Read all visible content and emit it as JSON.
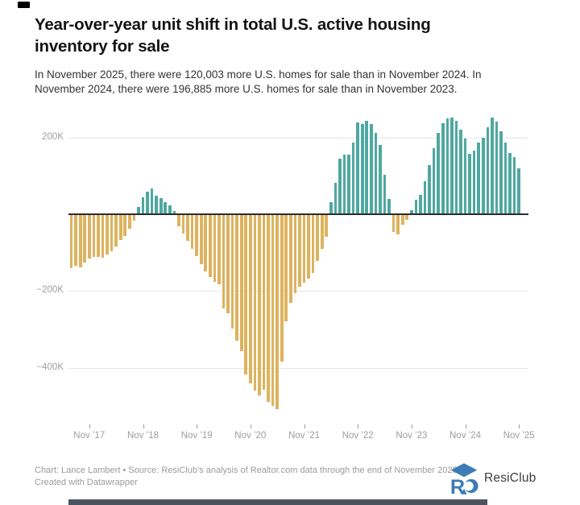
{
  "header": {
    "title": "Year-over-year unit shift in total U.S. active housing inventory for sale",
    "subtitle": "In November 2025, there were 120,003 more U.S. homes for sale than in November 2024. In November 2024, there were 196,885 more U.S. homes for sale than in November 2023."
  },
  "footer": {
    "attribution": "Chart: Lance Lambert • Source: ResiClub’s analysis of Realtor.com data through the end of November 2025 • Created with Datawrapper",
    "brand": "ResiClub"
  },
  "colors": {
    "positive_bar": "#4fa8a1",
    "negative_bar": "#ddb35f",
    "zero_line": "#2b2b2b",
    "gridline": "#e6e6e6",
    "axis_label": "#9d9d9d",
    "logo_blue": "#3d7cb5"
  },
  "chart_data": {
    "type": "bar",
    "title": "Year-over-year unit shift in total U.S. active housing inventory for sale",
    "xlabel": "",
    "ylabel": "",
    "unit": "thousands of homes (YoY change in active inventory)",
    "ylim": [
      -550,
      280
    ],
    "grid": "horizontal",
    "y_ticks": [
      {
        "label": "200K",
        "value": 200
      },
      {
        "label": "−200K",
        "value": -200
      },
      {
        "label": "−400K",
        "value": -400
      }
    ],
    "x_ticks": [
      {
        "label": "Nov ’17",
        "index": 4
      },
      {
        "label": "Nov ’18",
        "index": 16
      },
      {
        "label": "Nov ’19",
        "index": 28
      },
      {
        "label": "Nov ’20",
        "index": 40
      },
      {
        "label": "Nov ’21",
        "index": 52
      },
      {
        "label": "Nov ’22",
        "index": 64
      },
      {
        "label": "Nov ’23",
        "index": 76
      },
      {
        "label": "Nov ’24",
        "index": 88
      },
      {
        "label": "Nov ’25",
        "index": 100
      }
    ],
    "categories": [
      "Jul 2017",
      "Aug 2017",
      "Sep 2017",
      "Oct 2017",
      "Nov 2017",
      "Dec 2017",
      "Jan 2018",
      "Feb 2018",
      "Mar 2018",
      "Apr 2018",
      "May 2018",
      "Jun 2018",
      "Jul 2018",
      "Aug 2018",
      "Sep 2018",
      "Oct 2018",
      "Nov 2018",
      "Dec 2018",
      "Jan 2019",
      "Feb 2019",
      "Mar 2019",
      "Apr 2019",
      "May 2019",
      "Jun 2019",
      "Jul 2019",
      "Aug 2019",
      "Sep 2019",
      "Oct 2019",
      "Nov 2019",
      "Dec 2019",
      "Jan 2020",
      "Feb 2020",
      "Mar 2020",
      "Apr 2020",
      "May 2020",
      "Jun 2020",
      "Jul 2020",
      "Aug 2020",
      "Sep 2020",
      "Oct 2020",
      "Nov 2020",
      "Dec 2020",
      "Jan 2021",
      "Feb 2021",
      "Mar 2021",
      "Apr 2021",
      "May 2021",
      "Jun 2021",
      "Jul 2021",
      "Aug 2021",
      "Sep 2021",
      "Oct 2021",
      "Nov 2021",
      "Dec 2021",
      "Jan 2022",
      "Feb 2022",
      "Mar 2022",
      "Apr 2022",
      "May 2022",
      "Jun 2022",
      "Jul 2022",
      "Aug 2022",
      "Sep 2022",
      "Oct 2022",
      "Nov 2022",
      "Dec 2022",
      "Jan 2023",
      "Feb 2023",
      "Mar 2023",
      "Apr 2023",
      "May 2023",
      "Jun 2023",
      "Jul 2023",
      "Aug 2023",
      "Sep 2023",
      "Oct 2023",
      "Nov 2023",
      "Dec 2023",
      "Jan 2024",
      "Feb 2024",
      "Mar 2024",
      "Apr 2024",
      "May 2024",
      "Jun 2024",
      "Jul 2024",
      "Aug 2024",
      "Sep 2024",
      "Oct 2024",
      "Nov 2024",
      "Dec 2024",
      "Jan 2025",
      "Feb 2025",
      "Mar 2025",
      "Apr 2025",
      "May 2025",
      "Jun 2025",
      "Jul 2025",
      "Aug 2025",
      "Sep 2025",
      "Oct 2025",
      "Nov 2025"
    ],
    "values": [
      -138,
      -133,
      -137,
      -124,
      -113,
      -108,
      -110,
      -112,
      -103,
      -94,
      -82,
      -64,
      -54,
      -36,
      -15,
      18,
      44,
      58,
      67,
      48,
      42,
      32,
      23,
      9,
      -29,
      -49,
      -68,
      -87,
      -106,
      -127,
      -147,
      -162,
      -174,
      -181,
      -243,
      -255,
      -295,
      -327,
      -355,
      -415,
      -438,
      -458,
      -470,
      -455,
      -487,
      -498,
      -505,
      -382,
      -276,
      -229,
      -204,
      -187,
      -176,
      -166,
      -152,
      -120,
      -89,
      -57,
      31,
      81,
      144,
      155,
      156,
      187,
      240,
      236,
      243,
      235,
      212,
      180,
      103,
      40,
      -43,
      -50,
      -26,
      -12,
      11,
      37,
      51,
      86,
      128,
      173,
      212,
      238,
      250,
      252,
      244,
      221,
      196.9,
      158,
      166,
      186,
      199,
      226,
      252,
      242,
      217,
      187,
      159,
      150,
      120
    ],
    "highlight_values": {
      "nov_2025": 120003,
      "nov_2024": 196885
    }
  }
}
